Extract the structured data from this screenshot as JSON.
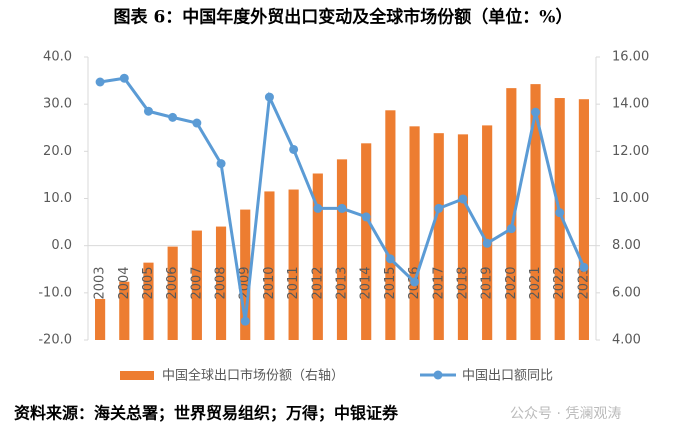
{
  "chart_data": {
    "type": "bar-line",
    "title": "图表 6：中国年度外贸出口变动及全球市场份额（单位：%）",
    "source": "资料来源：海关总署；世界贸易组织；万得；中银证券",
    "watermark": "公众号 · 凭澜观涛",
    "categories": [
      "2003",
      "2004",
      "2005",
      "2006",
      "2007",
      "2008",
      "2009",
      "2010",
      "2011",
      "2012",
      "2013",
      "2014",
      "2015",
      "2016",
      "2017",
      "2018",
      "2019",
      "2020",
      "2021",
      "2022",
      "2023"
    ],
    "series": [
      {
        "name": "中国全球出口市场份额（右轴）",
        "color": "#ed7d31",
        "kind": "bar",
        "axis": "y2",
        "values": [
          5.74,
          6.47,
          7.28,
          7.96,
          8.64,
          8.81,
          9.53,
          10.3,
          10.38,
          11.06,
          11.66,
          12.34,
          13.74,
          13.06,
          12.77,
          12.72,
          13.1,
          14.68,
          14.85,
          14.26,
          14.21
        ]
      },
      {
        "name": "中国出口额同比",
        "color": "#5b9bd5",
        "kind": "line",
        "values": [
          34.7,
          35.5,
          28.5,
          27.2,
          26.0,
          17.4,
          -16.0,
          31.5,
          20.4,
          7.9,
          7.9,
          6.1,
          -2.8,
          -7.7,
          7.9,
          9.9,
          0.5,
          3.6,
          28.3,
          7.0,
          -4.6
        ]
      }
    ],
    "ylim": [
      -20,
      40
    ],
    "yticks": [
      {
        "value": -20,
        "label": "-20.0"
      },
      {
        "value": -10,
        "label": "-10.0"
      },
      {
        "value": 0,
        "label": "0.0"
      },
      {
        "value": 10,
        "label": "10.0"
      },
      {
        "value": 20,
        "label": "20.0"
      },
      {
        "value": 30,
        "label": "30.0"
      },
      {
        "value": 40,
        "label": "40.0"
      }
    ],
    "y2lim": [
      4,
      16
    ],
    "y2ticks": [
      {
        "value": 4,
        "label": "4.00"
      },
      {
        "value": 6,
        "label": "6.00"
      },
      {
        "value": 8,
        "label": "8.00"
      },
      {
        "value": 10,
        "label": "10.00"
      },
      {
        "value": 12,
        "label": "12.00"
      },
      {
        "value": 14,
        "label": "14.00"
      },
      {
        "value": 16,
        "label": "16.00"
      }
    ]
  }
}
